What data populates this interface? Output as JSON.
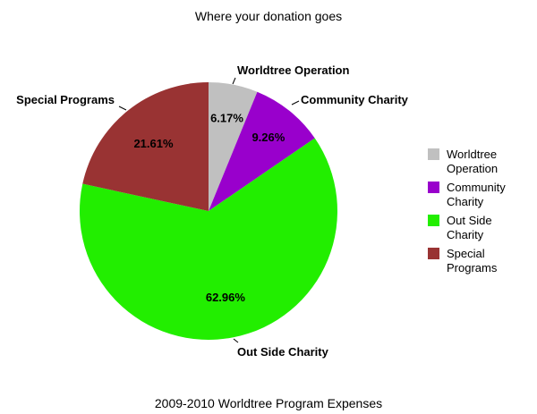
{
  "chart_data": {
    "type": "pie",
    "title": "Where your donation goes",
    "subtitle": "2009-2010 Worldtree Program Expenses",
    "legend_position": "right",
    "slices": [
      {
        "name": "Worldtree Operation",
        "legend_label": "Worldtree Operation",
        "value": 6.17,
        "pct_label": "6.17%",
        "color": "#c0c0c0"
      },
      {
        "name": "Community Charity",
        "legend_label": "Community Charity",
        "value": 9.26,
        "pct_label": "9.26%",
        "color": "#9900cc"
      },
      {
        "name": "Out Side Charity",
        "legend_label": "Out Side Charity",
        "value": 62.96,
        "pct_label": "62.96%",
        "color": "#22ee00"
      },
      {
        "name": "Special Programs",
        "legend_label": "Special Programs",
        "value": 21.61,
        "pct_label": "21.61%",
        "color": "#993333"
      }
    ]
  }
}
